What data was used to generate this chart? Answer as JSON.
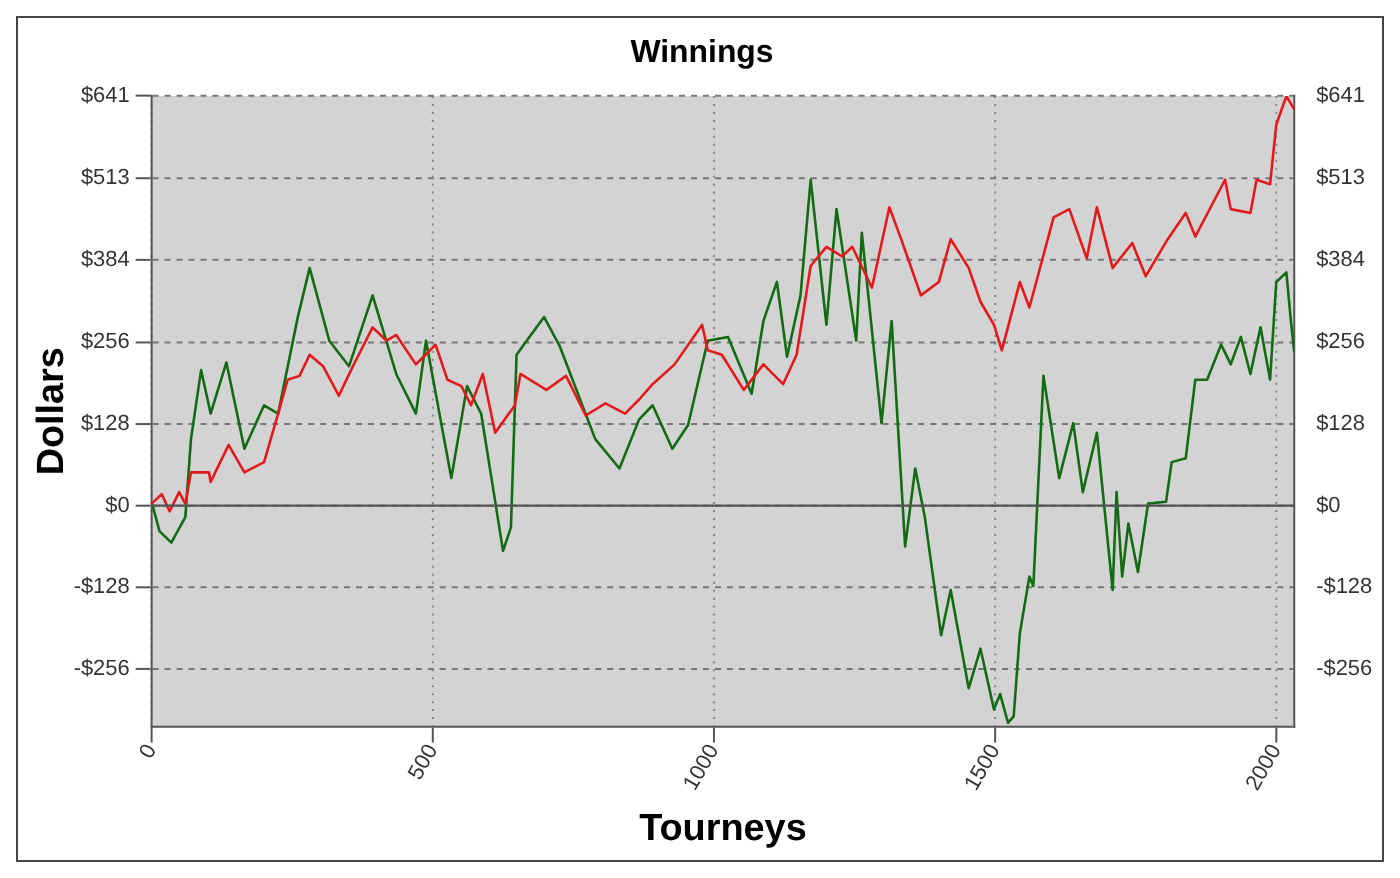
{
  "chart_data": {
    "type": "line",
    "title": "Winnings",
    "xlabel": "Tourneys",
    "ylabel": "Dollars",
    "xlim": [
      0,
      2032
    ],
    "xticks": [
      0,
      500,
      1000,
      1500,
      2000
    ],
    "ylim": [
      -346,
      641
    ],
    "yticks": [
      {
        "value": -256,
        "label": "-$256"
      },
      {
        "value": -128,
        "label": "-$128"
      },
      {
        "value": 0,
        "label": "$0"
      },
      {
        "value": 128,
        "label": "$128"
      },
      {
        "value": 256,
        "label": "$256"
      },
      {
        "value": 384,
        "label": "$384"
      },
      {
        "value": 513,
        "label": "$513"
      },
      {
        "value": 641,
        "label": "$641"
      }
    ],
    "y2lim": [
      -346,
      641
    ],
    "y2ticks": [
      {
        "value": -256,
        "label": "-$256"
      },
      {
        "value": -128,
        "label": "-$128"
      },
      {
        "value": 0,
        "label": "$0"
      },
      {
        "value": 128,
        "label": "$128"
      },
      {
        "value": 256,
        "label": "$256"
      },
      {
        "value": 384,
        "label": "$384"
      },
      {
        "value": 513,
        "label": "$513"
      },
      {
        "value": 641,
        "label": "$641"
      }
    ],
    "grid": true,
    "legend": false,
    "marker": "none",
    "line_style": "solid",
    "ref_lines": [
      {
        "axis": "y",
        "value": 0,
        "color": "#555555"
      }
    ],
    "series": [
      {
        "color": "#e31a1c",
        "x": [
          0,
          18,
          32,
          49,
          60,
          70,
          102,
          105,
          137,
          165,
          200,
          225,
          242,
          263,
          281,
          305,
          333,
          358,
          393,
          418,
          435,
          470,
          505,
          526,
          551,
          568,
          589,
          611,
          646,
          656,
          702,
          737,
          772,
          807,
          842,
          867,
          891,
          930,
          979,
          989,
          1014,
          1053,
          1088,
          1123,
          1147,
          1172,
          1200,
          1228,
          1246,
          1281,
          1312,
          1333,
          1368,
          1400,
          1421,
          1453,
          1474,
          1498,
          1512,
          1544,
          1561,
          1604,
          1632,
          1663,
          1681,
          1709,
          1744,
          1768,
          1807,
          1839,
          1856,
          1909,
          1919,
          1954,
          1965,
          1989,
          2000,
          2018,
          2032
        ],
        "values": [
          3,
          18,
          -9,
          21,
          3,
          52,
          52,
          37,
          95,
          52,
          68,
          144,
          197,
          203,
          236,
          218,
          172,
          218,
          279,
          258,
          267,
          221,
          252,
          197,
          187,
          157,
          206,
          114,
          157,
          206,
          181,
          203,
          141,
          160,
          144,
          166,
          190,
          221,
          283,
          243,
          236,
          181,
          221,
          190,
          236,
          375,
          405,
          390,
          405,
          341,
          467,
          417,
          329,
          350,
          417,
          372,
          319,
          283,
          243,
          350,
          310,
          451,
          464,
          387,
          467,
          372,
          411,
          359,
          417,
          458,
          421,
          510,
          464,
          458,
          510,
          503,
          596,
          641,
          620
        ]
      },
      {
        "color": "#136b13",
        "x": [
          0,
          14,
          35,
          60,
          70,
          88,
          105,
          133,
          165,
          200,
          225,
          260,
          281,
          316,
          351,
          393,
          435,
          470,
          488,
          533,
          561,
          586,
          625,
          639,
          649,
          667,
          698,
          726,
          789,
          832,
          867,
          891,
          926,
          954,
          989,
          1025,
          1067,
          1088,
          1112,
          1130,
          1154,
          1172,
          1200,
          1218,
          1253,
          1263,
          1298,
          1316,
          1340,
          1358,
          1375,
          1404,
          1421,
          1453,
          1474,
          1498,
          1509,
          1523,
          1533,
          1544,
          1561,
          1568,
          1586,
          1614,
          1639,
          1656,
          1681,
          1709,
          1716,
          1726,
          1737,
          1754,
          1772,
          1804,
          1814,
          1839,
          1856,
          1877,
          1902,
          1919,
          1937,
          1954,
          1972,
          1989,
          2000,
          2018,
          2025,
          2032
        ],
        "values": [
          6,
          -40,
          -58,
          -18,
          104,
          212,
          144,
          224,
          89,
          157,
          144,
          295,
          372,
          258,
          218,
          329,
          206,
          144,
          258,
          43,
          187,
          144,
          -71,
          -34,
          236,
          258,
          295,
          249,
          104,
          58,
          135,
          157,
          89,
          126,
          258,
          264,
          175,
          289,
          350,
          233,
          329,
          510,
          283,
          464,
          258,
          427,
          129,
          289,
          -64,
          58,
          -18,
          -203,
          -132,
          -286,
          -224,
          -319,
          -295,
          -340,
          -330,
          -200,
          -111,
          -126,
          203,
          43,
          129,
          21,
          114,
          -132,
          21,
          -111,
          -28,
          -104,
          3,
          6,
          68,
          74,
          197,
          197,
          252,
          221,
          264,
          206,
          279,
          197,
          350,
          365,
          298,
          240
        ]
      }
    ]
  }
}
